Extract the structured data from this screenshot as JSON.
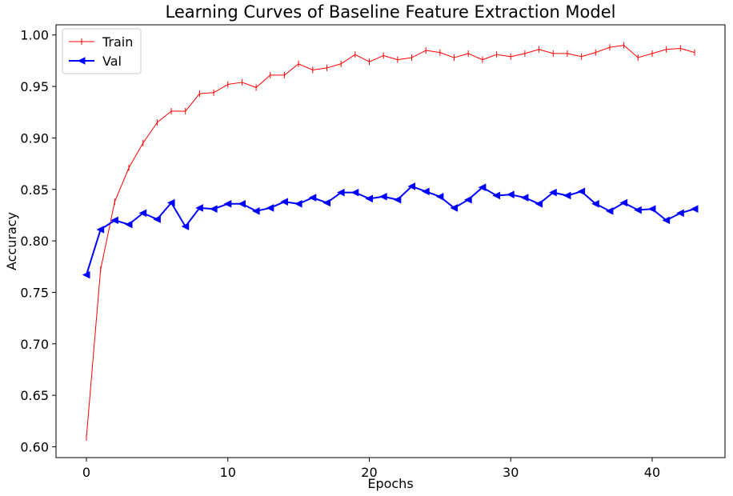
{
  "chart_data": {
    "type": "line",
    "title": "Learning Curves of Baseline Feature Extraction Model",
    "xlabel": "Epochs",
    "ylabel": "Accuracy",
    "xlim": [
      -2.15,
      45.15
    ],
    "ylim": [
      0.5895,
      1.0099
    ],
    "xticks": [
      0,
      10,
      20,
      30,
      40
    ],
    "xtick_labels": [
      "0",
      "10",
      "20",
      "30",
      "40"
    ],
    "yticks": [
      0.6,
      0.65,
      0.7,
      0.75,
      0.8,
      0.85,
      0.9,
      0.95,
      1.0
    ],
    "ytick_labels": [
      "0.60",
      "0.65",
      "0.70",
      "0.75",
      "0.80",
      "0.85",
      "0.90",
      "0.95",
      "1.00"
    ],
    "grid": false,
    "legend_position": "upper-left",
    "x": [
      0,
      1,
      2,
      3,
      4,
      5,
      6,
      7,
      8,
      9,
      10,
      11,
      12,
      13,
      14,
      15,
      16,
      17,
      18,
      19,
      20,
      21,
      22,
      23,
      24,
      25,
      26,
      27,
      28,
      29,
      30,
      31,
      32,
      33,
      34,
      35,
      36,
      37,
      38,
      39,
      40,
      41,
      42,
      43
    ],
    "series": [
      {
        "name": "Train",
        "color": "#ff0000",
        "marker": "vline",
        "linewidth": 1,
        "values": [
          0.609,
          0.772,
          0.838,
          0.871,
          0.895,
          0.915,
          0.926,
          0.926,
          0.943,
          0.944,
          0.952,
          0.954,
          0.949,
          0.961,
          0.961,
          0.972,
          0.966,
          0.968,
          0.972,
          0.981,
          0.974,
          0.98,
          0.976,
          0.978,
          0.985,
          0.983,
          0.978,
          0.982,
          0.976,
          0.981,
          0.979,
          0.982,
          0.986,
          0.982,
          0.982,
          0.979,
          0.983,
          0.988,
          0.99,
          0.978,
          0.982,
          0.986,
          0.987,
          0.983
        ]
      },
      {
        "name": "Val",
        "color": "#0000ff",
        "marker": "triangle-left",
        "linewidth": 2,
        "values": [
          0.767,
          0.811,
          0.82,
          0.816,
          0.827,
          0.821,
          0.837,
          0.814,
          0.832,
          0.831,
          0.836,
          0.836,
          0.829,
          0.832,
          0.838,
          0.836,
          0.842,
          0.837,
          0.847,
          0.847,
          0.841,
          0.843,
          0.84,
          0.853,
          0.848,
          0.843,
          0.832,
          0.84,
          0.852,
          0.844,
          0.845,
          0.842,
          0.836,
          0.847,
          0.844,
          0.848,
          0.836,
          0.829,
          0.837,
          0.83,
          0.831,
          0.82,
          0.827,
          0.831
        ]
      }
    ]
  }
}
